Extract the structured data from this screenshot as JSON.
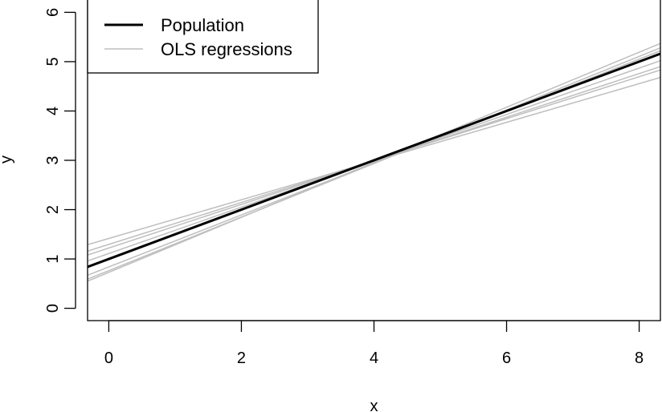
{
  "chart_data": {
    "type": "line",
    "title": "",
    "xlabel": "x",
    "ylabel": "y",
    "xlim": [
      -0.32,
      8.32
    ],
    "ylim": [
      -0.25,
      6.25
    ],
    "x_ticks": [
      0,
      2,
      4,
      6,
      8
    ],
    "y_ticks": [
      0,
      1,
      2,
      3,
      4,
      5,
      6
    ],
    "x_tick_labels": [
      "0",
      "2",
      "4",
      "6",
      "8"
    ],
    "y_tick_labels": [
      "0",
      "1",
      "2",
      "3",
      "4",
      "5",
      "6"
    ],
    "legend": {
      "placement": "top-left",
      "entries": [
        {
          "label": "Population",
          "color": "#000000"
        },
        {
          "label": "OLS regressions",
          "color": "#bebebe"
        }
      ]
    },
    "series": [
      {
        "name": "Population",
        "color": "#000000",
        "x": [
          -0.32,
          8.32
        ],
        "y": [
          0.84,
          5.16
        ]
      },
      {
        "name": "OLS regressions",
        "color": "#bebebe",
        "lines": [
          {
            "x": [
              -0.32,
              8.32
            ],
            "y": [
              1.29,
              4.68
            ]
          },
          {
            "x": [
              -0.32,
              8.32
            ],
            "y": [
              1.16,
              4.83
            ]
          },
          {
            "x": [
              -0.32,
              8.32
            ],
            "y": [
              1.08,
              4.9
            ]
          },
          {
            "x": [
              -0.32,
              8.32
            ],
            "y": [
              0.96,
              5.02
            ]
          },
          {
            "x": [
              -0.32,
              8.32
            ],
            "y": [
              0.67,
              5.22
            ]
          },
          {
            "x": [
              -0.32,
              8.32
            ],
            "y": [
              0.59,
              5.28
            ]
          },
          {
            "x": [
              -0.32,
              8.32
            ],
            "y": [
              0.55,
              5.37
            ]
          }
        ]
      }
    ]
  }
}
